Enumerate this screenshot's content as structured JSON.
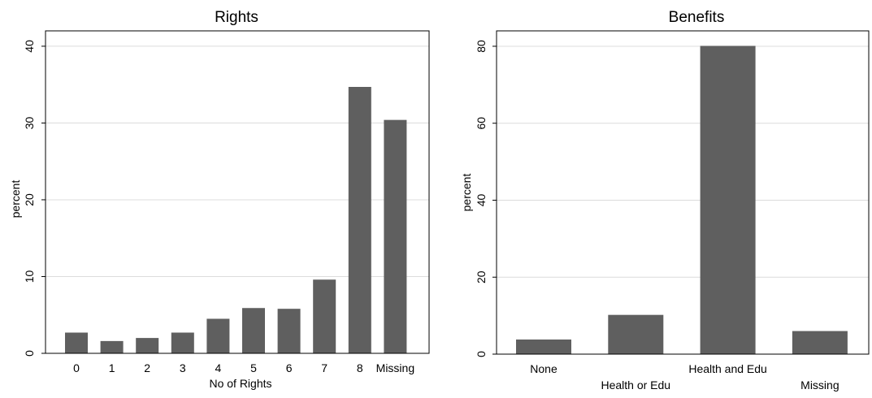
{
  "colors": {
    "bar": "#5f5f5f",
    "grid": "#dcdcdc",
    "axis": "#000000",
    "background": "#ffffff"
  },
  "chart_data": [
    {
      "type": "bar",
      "title": "Rights",
      "xlabel": "No of Rights",
      "ylabel": "percent",
      "categories": [
        "0",
        "1",
        "2",
        "3",
        "4",
        "5",
        "6",
        "7",
        "8",
        "Missing"
      ],
      "values": [
        2.7,
        1.6,
        2.0,
        2.7,
        4.5,
        5.9,
        5.8,
        9.6,
        34.7,
        30.4
      ],
      "ylim": [
        0,
        42
      ],
      "yticks": [
        0,
        10,
        20,
        30,
        40
      ],
      "grid": true
    },
    {
      "type": "bar",
      "title": "Benefits",
      "xlabel": "",
      "ylabel": "percent",
      "categories": [
        "None",
        "Health or Edu",
        "Health and Edu",
        "Missing"
      ],
      "values": [
        3.8,
        10.2,
        80.1,
        6.0
      ],
      "ylim": [
        0,
        84
      ],
      "yticks": [
        0,
        20,
        40,
        60,
        80
      ],
      "grid": true
    }
  ]
}
